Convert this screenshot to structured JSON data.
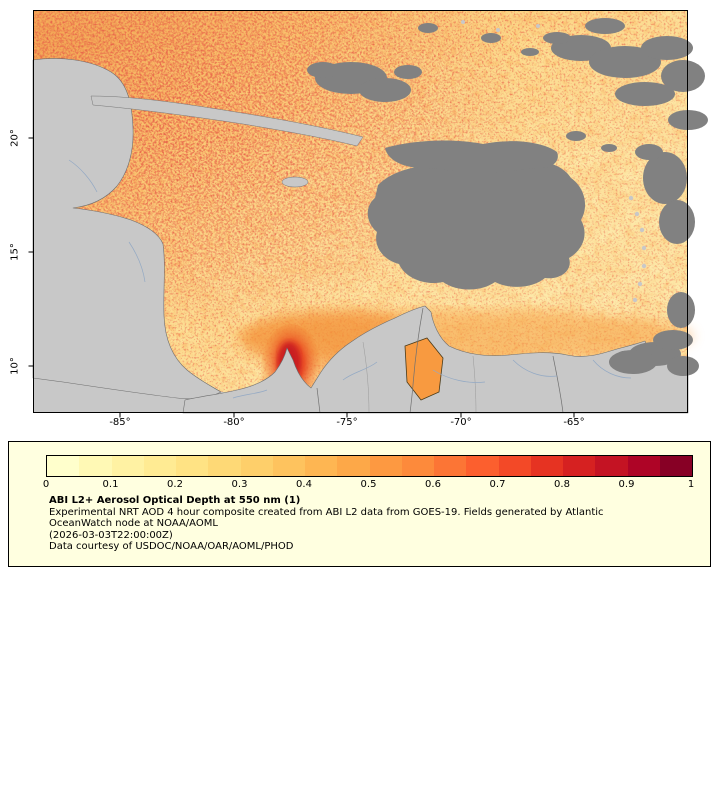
{
  "map": {
    "y_ticks": [
      "20°",
      "15°",
      "10°"
    ],
    "x_ticks": [
      "-85°",
      "-80°",
      "-75°",
      "-70°",
      "-65°"
    ],
    "colors": {
      "land": "#c8c8c8",
      "cloud": "#818181",
      "coastline": "#6e6e6e",
      "river": "#93a9c4",
      "aod_low": "#ffffcc",
      "aod_high": "#800026"
    }
  },
  "legend": {
    "background": "#ffffe0",
    "ticks": [
      "0",
      "0.1",
      "0.2",
      "0.3",
      "0.4",
      "0.5",
      "0.6",
      "0.7",
      "0.8",
      "0.9",
      "1"
    ],
    "colorbar_colors": [
      "#ffffcc",
      "#fff9b5",
      "#fff2a3",
      "#ffeb93",
      "#ffe384",
      "#fed976",
      "#fecf6a",
      "#fec35e",
      "#feb652",
      "#fda848",
      "#fd9941",
      "#fd8a3b",
      "#fc7535",
      "#fc5f2e",
      "#f34927",
      "#e63322",
      "#d62121",
      "#c41323",
      "#ae0426",
      "#870025"
    ],
    "title": "ABI L2+ Aerosol Optical Depth at 550 nm (1)",
    "lines": [
      "Experimental NRT AOD 4 hour composite created from ABI L2 data from GOES-19. Fields generated by Atlantic",
      "OceanWatch node at NOAA/AOML",
      "(2026-03-03T22:00:00Z)",
      "Data courtesy of USDOC/NOAA/OAR/AOML/PHOD"
    ]
  }
}
